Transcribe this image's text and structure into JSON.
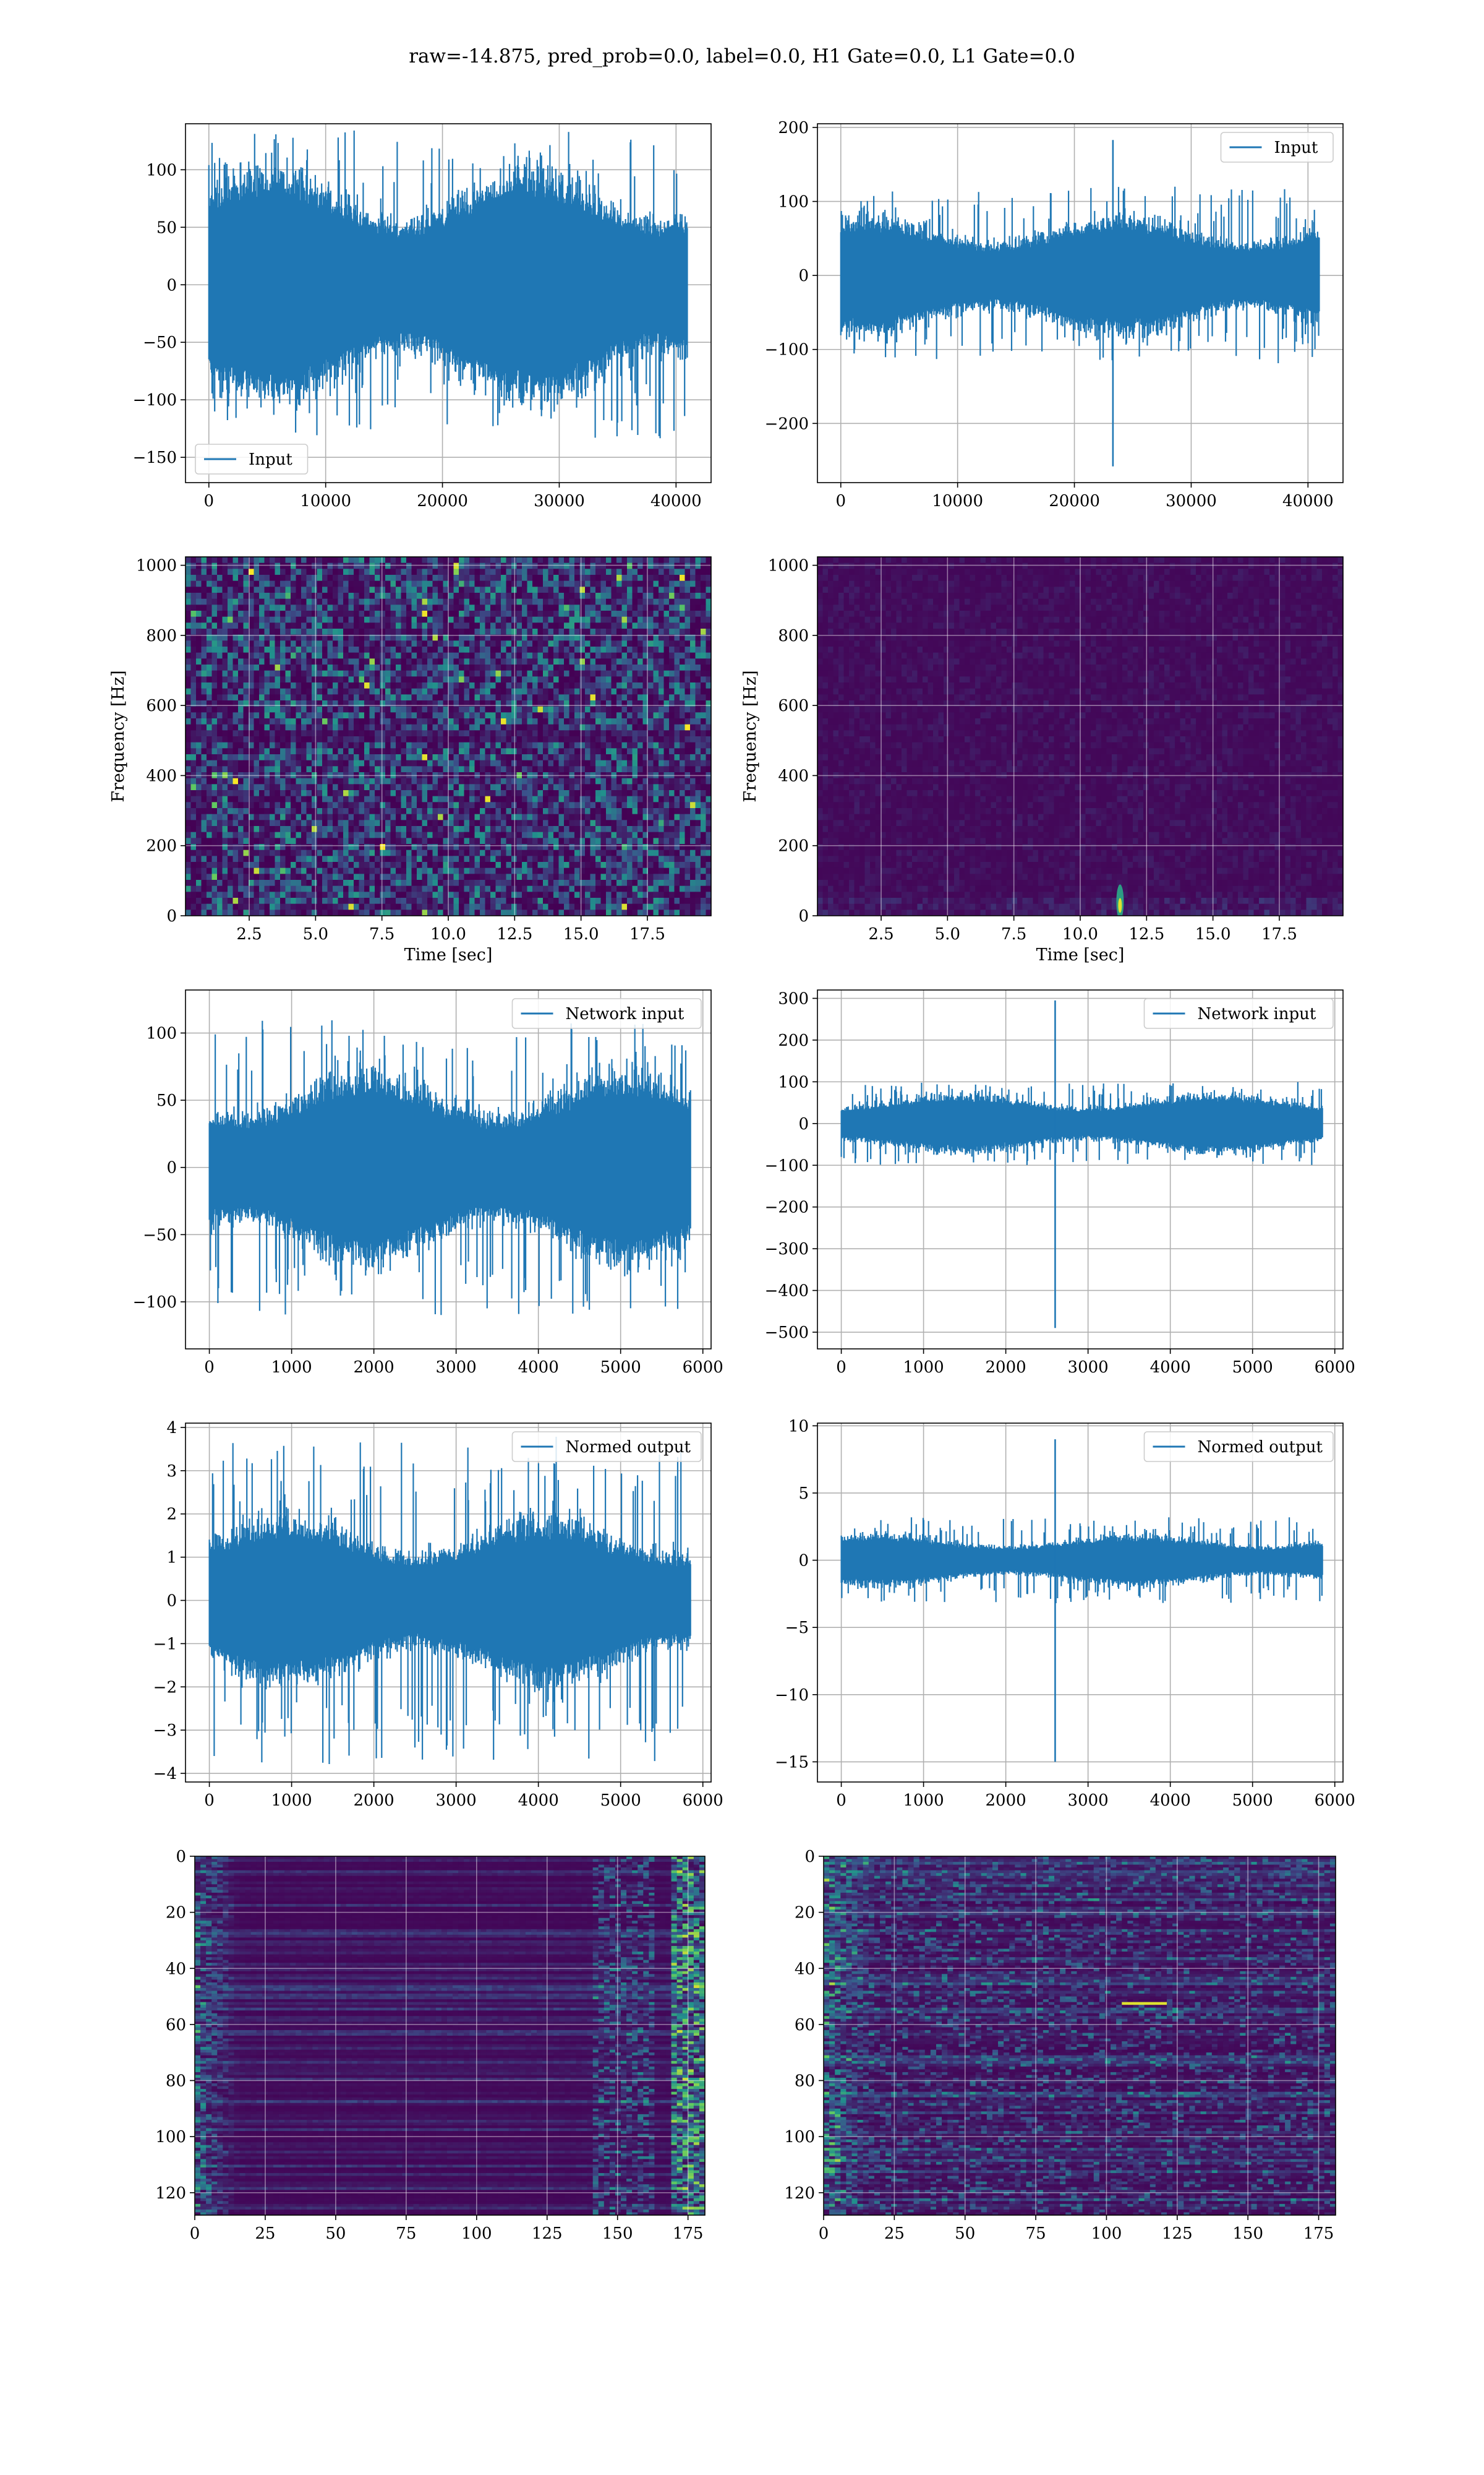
{
  "suptitle": "raw=-14.875, pred_prob=0.0, label=0.0, H1 Gate=0.0, L1 Gate=0.0",
  "colors": {
    "line": "#1f77b4",
    "grid": "#b0b0b0",
    "cmap_low": "#440154",
    "cmap_mid": "#21918c",
    "cmap_high": "#fde725"
  },
  "chart_data": [
    {
      "id": "h1-input",
      "type": "line",
      "legend": "Input",
      "legend_loc": "lower-left",
      "xlim": [
        -2000,
        43000
      ],
      "ylim": [
        -172,
        140
      ],
      "xticks": [
        0,
        10000,
        20000,
        30000,
        40000
      ],
      "xticklabels": [
        "0",
        "10000",
        "20000",
        "30000",
        "40000"
      ],
      "yticks": [
        100,
        50,
        0,
        -50,
        -100,
        -150
      ],
      "yticklabels": [
        "100",
        "50",
        "0",
        "−50",
        "−100",
        "−150"
      ],
      "x_range": [
        0,
        40960
      ],
      "envelope": 80,
      "noise_peak": 135,
      "spikes": []
    },
    {
      "id": "l1-input",
      "type": "line",
      "legend": "Input",
      "legend_loc": "upper-right",
      "xlim": [
        -2000,
        43000
      ],
      "ylim": [
        -280,
        205
      ],
      "xticks": [
        0,
        10000,
        20000,
        30000,
        40000
      ],
      "xticklabels": [
        "0",
        "10000",
        "20000",
        "30000",
        "40000"
      ],
      "yticks": [
        200,
        100,
        0,
        -100,
        -200
      ],
      "yticklabels": [
        "200",
        "100",
        "0",
        "−100",
        "−200"
      ],
      "x_range": [
        0,
        40960
      ],
      "envelope": 62,
      "noise_peak": 120,
      "spikes": [
        {
          "x": 23300,
          "max": 183,
          "min": -258
        }
      ]
    },
    {
      "id": "h1-spectrogram",
      "type": "heatmap",
      "ylabel": "Frequency [Hz]",
      "xlabel": "Time [sec]",
      "xlim": [
        0.1,
        19.9
      ],
      "ylim": [
        0,
        1024
      ],
      "xticks": [
        2.5,
        5,
        7.5,
        10,
        12.5,
        15,
        17.5
      ],
      "xticklabels": [
        "2.5",
        "5.0",
        "7.5",
        "10.0",
        "12.5",
        "15.0",
        "17.5"
      ],
      "yticks": [
        0,
        200,
        400,
        600,
        800,
        1000
      ],
      "yticklabels": [
        "0",
        "200",
        "400",
        "600",
        "800",
        "1000"
      ],
      "pattern": "noise"
    },
    {
      "id": "l1-spectrogram",
      "type": "heatmap",
      "ylabel": "Frequency [Hz]",
      "xlabel": "Time [sec]",
      "xlim": [
        0.1,
        19.9
      ],
      "ylim": [
        0,
        1024
      ],
      "xticks": [
        2.5,
        5,
        7.5,
        10,
        12.5,
        15,
        17.5
      ],
      "xticklabels": [
        "2.5",
        "5.0",
        "7.5",
        "10.0",
        "12.5",
        "15.0",
        "17.5"
      ],
      "yticks": [
        0,
        200,
        400,
        600,
        800,
        1000
      ],
      "yticklabels": [
        "0",
        "200",
        "400",
        "600",
        "800",
        "1000"
      ],
      "pattern": "glitch",
      "glitch": {
        "time": 11.5,
        "freq": 40
      }
    },
    {
      "id": "h1-network-input",
      "type": "line",
      "legend": "Network input",
      "legend_loc": "upper-right",
      "xlim": [
        -290,
        6100
      ],
      "ylim": [
        -135,
        132
      ],
      "xticks": [
        0,
        1000,
        2000,
        3000,
        4000,
        5000,
        6000
      ],
      "xticklabels": [
        "0",
        "1000",
        "2000",
        "3000",
        "4000",
        "5000",
        "6000"
      ],
      "yticks": [
        100,
        50,
        0,
        -50,
        -100
      ],
      "yticklabels": [
        "100",
        "50",
        "0",
        "−50",
        "−100"
      ],
      "x_range": [
        0,
        5850
      ],
      "envelope": 55,
      "noise_peak": 110,
      "spikes": []
    },
    {
      "id": "l1-network-input",
      "type": "line",
      "legend": "Network input",
      "legend_loc": "upper-right",
      "xlim": [
        -290,
        6100
      ],
      "ylim": [
        -540,
        320
      ],
      "xticks": [
        0,
        1000,
        2000,
        3000,
        4000,
        5000,
        6000
      ],
      "xticklabels": [
        "0",
        "1000",
        "2000",
        "3000",
        "4000",
        "5000",
        "6000"
      ],
      "yticks": [
        300,
        200,
        100,
        0,
        -100,
        -200,
        -300,
        -400,
        -500
      ],
      "yticklabels": [
        "300",
        "200",
        "100",
        "0",
        "−100",
        "−200",
        "−300",
        "−400",
        "−500"
      ],
      "x_range": [
        0,
        5850
      ],
      "envelope": 55,
      "noise_peak": 100,
      "spikes": [
        {
          "x": 2600,
          "max": 295,
          "min": -490
        }
      ]
    },
    {
      "id": "h1-normed-output",
      "type": "line",
      "legend": "Normed output",
      "legend_loc": "upper-right",
      "xlim": [
        -290,
        6100
      ],
      "ylim": [
        -4.2,
        4.1
      ],
      "xticks": [
        0,
        1000,
        2000,
        3000,
        4000,
        5000,
        6000
      ],
      "xticklabels": [
        "0",
        "1000",
        "2000",
        "3000",
        "4000",
        "5000",
        "6000"
      ],
      "yticks": [
        4,
        3,
        2,
        1,
        0,
        -1,
        -2,
        -3,
        -4
      ],
      "yticklabels": [
        "4",
        "3",
        "2",
        "1",
        "0",
        "−1",
        "−2",
        "−3",
        "−4"
      ],
      "x_range": [
        0,
        5850
      ],
      "envelope": 1.5,
      "noise_peak": 3.8,
      "spikes": []
    },
    {
      "id": "l1-normed-output",
      "type": "line",
      "legend": "Normed output",
      "legend_loc": "upper-right",
      "xlim": [
        -290,
        6100
      ],
      "ylim": [
        -16.5,
        10.2
      ],
      "xticks": [
        0,
        1000,
        2000,
        3000,
        4000,
        5000,
        6000
      ],
      "xticklabels": [
        "0",
        "1000",
        "2000",
        "3000",
        "4000",
        "5000",
        "6000"
      ],
      "yticks": [
        10,
        5,
        0,
        -5,
        -10,
        -15
      ],
      "yticklabels": [
        "10",
        "5",
        "0",
        "−5",
        "−10",
        "−15"
      ],
      "x_range": [
        0,
        5850
      ],
      "envelope": 1.5,
      "noise_peak": 3.2,
      "spikes": [
        {
          "x": 2600,
          "max": 9,
          "min": -15
        }
      ]
    },
    {
      "id": "h1-features",
      "type": "heatmap",
      "xlim": [
        0,
        181
      ],
      "ylim": [
        128,
        0
      ],
      "xticks": [
        0,
        25,
        50,
        75,
        100,
        125,
        150,
        175
      ],
      "xticklabels": [
        "0",
        "25",
        "50",
        "75",
        "100",
        "125",
        "150",
        "175"
      ],
      "yticks": [
        0,
        20,
        40,
        60,
        80,
        100,
        120
      ],
      "yticklabels": [
        "0",
        "20",
        "40",
        "60",
        "80",
        "100",
        "120"
      ],
      "pattern": "features-edges"
    },
    {
      "id": "l1-features",
      "type": "heatmap",
      "xlim": [
        0,
        181
      ],
      "ylim": [
        128,
        0
      ],
      "xticks": [
        0,
        25,
        50,
        75,
        100,
        125,
        150,
        175
      ],
      "xticklabels": [
        "0",
        "25",
        "50",
        "75",
        "100",
        "125",
        "150",
        "175"
      ],
      "yticks": [
        0,
        20,
        40,
        60,
        80,
        100,
        120
      ],
      "yticklabels": [
        "0",
        "20",
        "40",
        "60",
        "80",
        "100",
        "120"
      ],
      "pattern": "features-left"
    }
  ]
}
